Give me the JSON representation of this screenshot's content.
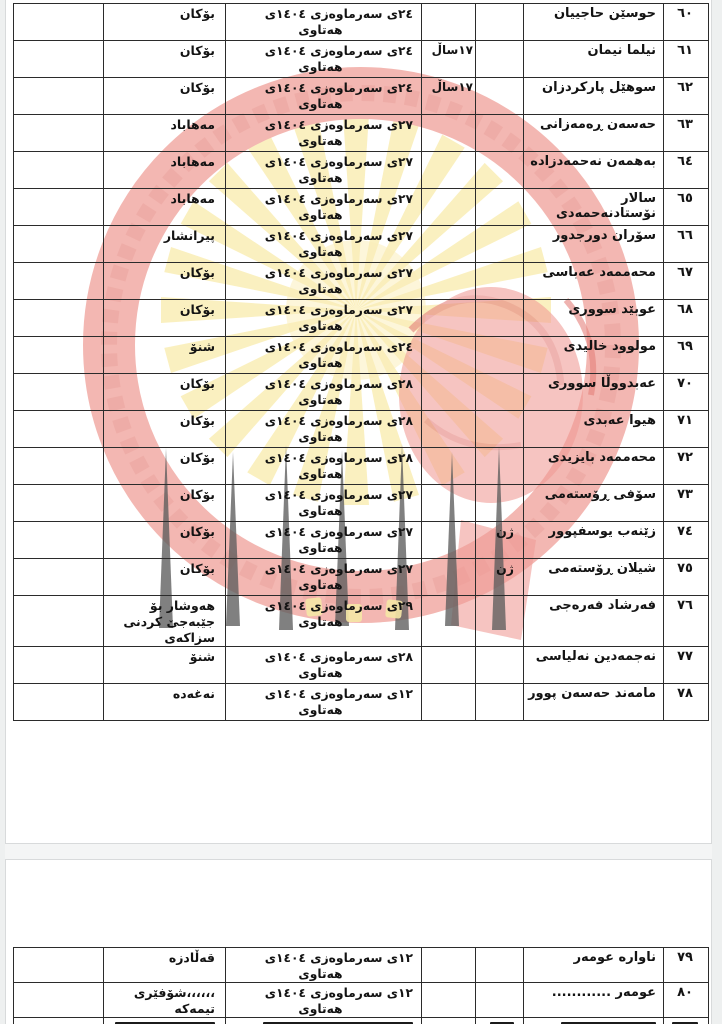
{
  "document": {
    "script_direction": "rtl",
    "era_label": "هەتاوی",
    "watermark": {
      "description": "organization-logo-watermark",
      "ring_color": "#f2b0aa",
      "ring_text_color": "#e99a93",
      "sun_color": "#faedb2",
      "sun_core_color": "#fdf6d6",
      "fist_color": "#ef928c",
      "fist_line_color": "#e2736d",
      "spike_color": "#4c4c4c",
      "arc_mark_color": "#f6e59d"
    },
    "tables": [
      {
        "rows": [
          {
            "no": "٦٠",
            "name": "حوسێن حاجییان",
            "gender": "",
            "age": "",
            "date": "٢٤ی سەرماوەزی ١٤٠٤ی",
            "place": "بۆکان"
          },
          {
            "no": "٦١",
            "name": "نیلما نیمان",
            "gender": "",
            "age": "١٧ساڵ",
            "date": "٢٤ی سەرماوەزی ١٤٠٤ی",
            "place": "بۆکان"
          },
          {
            "no": "٦٢",
            "name": "سوهێل پارکردزان",
            "gender": "",
            "age": "١٧ساڵ",
            "date": "٢٤ی سەرماوەزی ١٤٠٤ی",
            "place": "بۆکان"
          },
          {
            "no": "٦٣",
            "name": "حەسەن ڕەمەزانی",
            "gender": "",
            "age": "",
            "date": "٢٧ی سەرماوەزی ١٤٠٤ی",
            "place": "مەهاباد"
          },
          {
            "no": "٦٤",
            "name": "بەهمەن نەحمەدزادە",
            "gender": "",
            "age": "",
            "date": "٢٧ی سەرماوەزی ١٤٠٤ی",
            "place": "مەهاباد"
          },
          {
            "no": "٦٥",
            "name": "سالار نۆستادنەحمەدی",
            "gender": "",
            "age": "",
            "date": "٢٧ی سەرماوەزی ١٤٠٤ی",
            "place": "مەهاباد"
          },
          {
            "no": "٦٦",
            "name": "سۆران دورجدور",
            "gender": "",
            "age": "",
            "date": "٢٧ی سەرماوەزی ١٤٠٤ی",
            "place": "پیرانشار"
          },
          {
            "no": "٦٧",
            "name": "محەممەد عەباسی",
            "gender": "",
            "age": "",
            "date": "٢٧ی سەرماوەزی ١٤٠٤ی",
            "place": "بۆکان"
          },
          {
            "no": "٦٨",
            "name": "عوبێد سووری",
            "gender": "",
            "age": "",
            "date": "٢٧ی سەرماوەزی ١٤٠٤ی",
            "place": "بۆکان"
          },
          {
            "no": "٦٩",
            "name": "مولوود خالیدی",
            "gender": "",
            "age": "",
            "date": "٢٤ی سەرماوەزی ١٤٠٤ی",
            "place": "شنۆ"
          },
          {
            "no": "٧٠",
            "name": "عەبدووڵا سووری",
            "gender": "",
            "age": "",
            "date": "٢٨ی سەرماوەزی ١٤٠٤ی",
            "place": "بۆکان"
          },
          {
            "no": "٧١",
            "name": "هیوا عەبدی",
            "gender": "",
            "age": "",
            "date": "٢٨ی سەرماوەزی ١٤٠٤ی",
            "place": "بۆکان"
          },
          {
            "no": "٧٢",
            "name": "محەممەد بایزیدی",
            "gender": "",
            "age": "",
            "date": "٢٨ی سەرماوەزی ١٤٠٤ی",
            "place": "بۆکان"
          },
          {
            "no": "٧٣",
            "name": "سۆفی ڕۆستەمی",
            "gender": "",
            "age": "",
            "date": "٢٧ی سەرماوەزی ١٤٠٤ی",
            "place": "بۆکان"
          },
          {
            "no": "٧٤",
            "name": "زێنەب یوسفپوور",
            "gender": "ژن",
            "age": "",
            "date": "٢٧ی سەرماوەزی ١٤٠٤ی",
            "place": "بۆکان"
          },
          {
            "no": "٧٥",
            "name": "شیلان ڕۆستەمی",
            "gender": "ژن",
            "age": "",
            "date": "٢٧ی سەرماوەزی ١٤٠٤ی",
            "place": "بۆکان"
          },
          {
            "no": "٧٦",
            "name": "فەرشاد فەرەجی",
            "gender": "",
            "age": "",
            "date": "٢٩ی سەرماوەزی ١٤٠٤ی",
            "place": "هەوشار بۆ جێبەجێ کردنی سزاکەی"
          },
          {
            "no": "٧٧",
            "name": "نەجمەدین نەلیاسی",
            "gender": "",
            "age": "",
            "date": "٢٨ی سەرماوەزی ١٤٠٤ی",
            "place": "شنۆ"
          },
          {
            "no": "٧٨",
            "name": "مامەند حەسەن پوور",
            "gender": "",
            "age": "",
            "date": "١٢ی سەرماوەزی ١٤٠٤ی",
            "place": "نەغەدە"
          }
        ]
      },
      {
        "rows": [
          {
            "no": "٧٩",
            "name": "ناوارە عومەر",
            "gender": "",
            "age": "",
            "date": "١٢ی سەرماوەزی ١٤٠٤ی",
            "place": "قەڵادزە"
          },
          {
            "no": "٨٠",
            "name": "عومەر ............",
            "gender": "",
            "age": "",
            "date": "١٢ی سەرماوەزی ١٤٠٤ی",
            "place": "،،،،،،شۆفێری تیمەکە"
          }
        ]
      }
    ]
  }
}
